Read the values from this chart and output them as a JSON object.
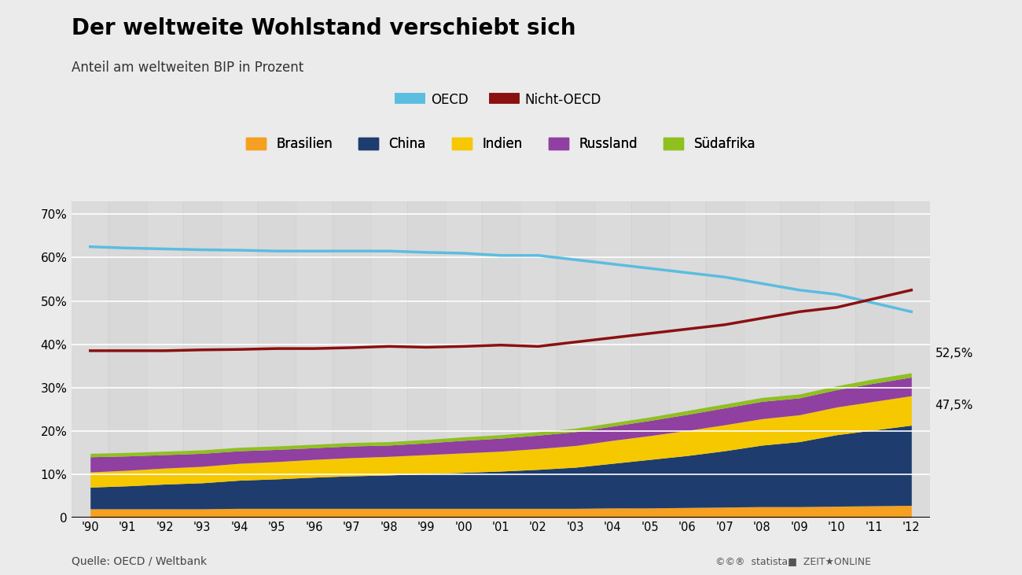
{
  "title": "Der weltweite Wohlstand verschiebt sich",
  "subtitle": "Anteil am weltweiten BIP in Prozent",
  "source": "Quelle: OECD / Weltbank",
  "years": [
    1990,
    1991,
    1992,
    1993,
    1994,
    1995,
    1996,
    1997,
    1998,
    1999,
    2000,
    2001,
    2002,
    2003,
    2004,
    2005,
    2006,
    2007,
    2008,
    2009,
    2010,
    2011,
    2012
  ],
  "oecd": [
    62.5,
    62.2,
    62.0,
    61.8,
    61.7,
    61.5,
    61.5,
    61.5,
    61.5,
    61.2,
    61.0,
    60.5,
    60.5,
    59.5,
    58.5,
    57.5,
    56.5,
    55.5,
    54.0,
    52.5,
    51.5,
    49.5,
    47.5
  ],
  "nicht_oecd": [
    38.5,
    38.5,
    38.5,
    38.7,
    38.8,
    39.0,
    39.0,
    39.2,
    39.5,
    39.3,
    39.5,
    39.8,
    39.5,
    40.5,
    41.5,
    42.5,
    43.5,
    44.5,
    46.0,
    47.5,
    48.5,
    50.5,
    52.5
  ],
  "brasilien": [
    2.0,
    2.0,
    2.0,
    2.0,
    2.1,
    2.1,
    2.1,
    2.1,
    2.1,
    2.1,
    2.1,
    2.1,
    2.1,
    2.1,
    2.2,
    2.2,
    2.3,
    2.4,
    2.5,
    2.5,
    2.6,
    2.7,
    2.8
  ],
  "china": [
    5.0,
    5.3,
    5.7,
    6.0,
    6.5,
    6.8,
    7.2,
    7.5,
    7.7,
    8.0,
    8.3,
    8.6,
    9.0,
    9.5,
    10.3,
    11.2,
    12.0,
    13.0,
    14.2,
    15.0,
    16.5,
    17.5,
    18.5
  ],
  "indien": [
    3.5,
    3.6,
    3.7,
    3.8,
    3.9,
    4.0,
    4.1,
    4.2,
    4.3,
    4.4,
    4.5,
    4.6,
    4.8,
    5.0,
    5.3,
    5.5,
    5.8,
    6.0,
    6.1,
    6.2,
    6.4,
    6.6,
    6.8
  ],
  "russland": [
    3.5,
    3.3,
    3.1,
    3.0,
    2.9,
    2.8,
    2.7,
    2.7,
    2.6,
    2.7,
    2.9,
    3.0,
    3.1,
    3.2,
    3.3,
    3.5,
    3.7,
    3.9,
    4.0,
    3.9,
    4.0,
    4.2,
    4.3
  ],
  "suedafrika": [
    0.8,
    0.8,
    0.8,
    0.8,
    0.8,
    0.8,
    0.8,
    0.8,
    0.8,
    0.8,
    0.8,
    0.8,
    0.8,
    0.8,
    0.8,
    0.8,
    0.9,
    0.9,
    0.9,
    0.9,
    0.9,
    1.0,
    1.0
  ],
  "oecd_color": "#5bbde0",
  "nicht_oecd_color": "#8b1010",
  "brasilien_color": "#f5a020",
  "china_color": "#1e3d6e",
  "indien_color": "#f5c800",
  "russland_color": "#9040a0",
  "suedafrika_color": "#90c020",
  "bg_color": "#ebebeb",
  "plot_bg_alt1": "#e0e0e0",
  "plot_bg_alt2": "#d0d0d0",
  "grid_color": "#ffffff",
  "label_52_5": "52,5%",
  "label_47_5": "47,5%",
  "ylim": [
    0,
    73
  ],
  "yticks": [
    0,
    10,
    20,
    30,
    40,
    50,
    60,
    70
  ]
}
